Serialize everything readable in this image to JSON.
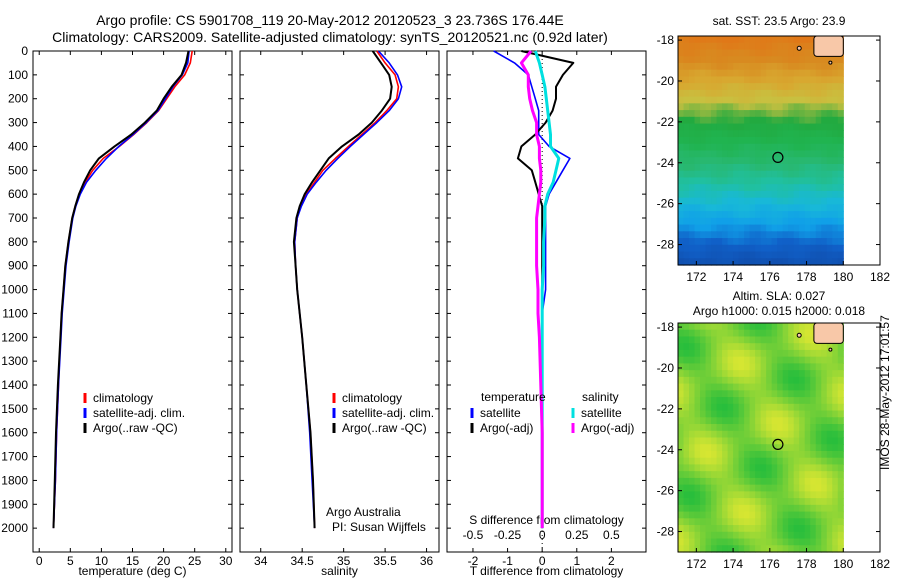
{
  "header": {
    "title_line1": "Argo profile: CS 5901708_119 20-May-2012 20120523_3 23.736S 176.44E",
    "title_line2": "Climatology: CARS2009. Satellite-adjusted climatology: synTS_20120521.nc (0.92d later)"
  },
  "timestamp": "IMOS 28-May-2012 17:01:57",
  "colors": {
    "climatology": "#ff0000",
    "satellite": "#0000ff",
    "argo": "#000000",
    "salinity_satellite": "#00e0e0",
    "salinity_argo": "#ff00ff"
  },
  "depth_ticks": [
    0,
    100,
    200,
    300,
    400,
    500,
    600,
    700,
    800,
    900,
    1000,
    1100,
    1200,
    1300,
    1400,
    1500,
    1600,
    1700,
    1800,
    1900,
    2000
  ],
  "chart_data": [
    {
      "type": "line",
      "panel": "temperature",
      "xlabel": "temperature (deg C)",
      "ylabel": "",
      "xlim": [
        -1,
        31
      ],
      "ylim": [
        2100,
        0
      ],
      "xticks": [
        0,
        5,
        10,
        15,
        20,
        25,
        30
      ],
      "legend": [
        "climatology",
        "satellite-adj. clim.",
        "Argo(..raw -QC)"
      ],
      "depth": [
        0,
        50,
        100,
        150,
        200,
        250,
        300,
        350,
        400,
        450,
        500,
        550,
        600,
        650,
        700,
        800,
        900,
        1000,
        1100,
        1200,
        1400,
        1600,
        1800,
        2000
      ],
      "series": [
        {
          "name": "climatology",
          "color": "red",
          "x": [
            24.6,
            24.3,
            23.4,
            21.8,
            20.5,
            19.2,
            17.3,
            15.2,
            12.9,
            10.3,
            8.6,
            7.4,
            6.5,
            5.8,
            5.3,
            4.7,
            4.2,
            3.9,
            3.6,
            3.4,
            3.1,
            2.8,
            2.6,
            2.3
          ]
        },
        {
          "name": "satellite-adj. clim.",
          "color": "blue",
          "x": [
            24.1,
            23.9,
            23.0,
            21.5,
            20.3,
            19.1,
            17.2,
            15.1,
            12.8,
            10.8,
            9.1,
            7.6,
            6.6,
            5.9,
            5.4,
            4.8,
            4.3,
            4.0,
            3.7,
            3.5,
            3.1,
            2.8,
            2.6,
            2.3
          ]
        },
        {
          "name": "Argo(..raw -QC)",
          "color": "black",
          "x": [
            24.0,
            23.6,
            22.9,
            21.3,
            20.0,
            18.9,
            17.0,
            14.8,
            12.1,
            9.6,
            8.2,
            7.2,
            6.4,
            5.8,
            5.3,
            4.7,
            4.2,
            3.9,
            3.6,
            3.4,
            3.0,
            2.7,
            2.5,
            2.3
          ]
        }
      ]
    },
    {
      "type": "line",
      "panel": "salinity",
      "xlabel": "salinity",
      "ylabel": "",
      "xlim": [
        33.75,
        36.15
      ],
      "ylim": [
        2100,
        0
      ],
      "xticks": [
        34,
        34.5,
        35,
        35.5,
        36
      ],
      "xticklabels": [
        "34",
        "34.5",
        "35",
        "35.5",
        "36"
      ],
      "legend": [
        "climatology",
        "satellite-adj. clim.",
        "Argo(..raw -QC)"
      ],
      "annotation": [
        "Argo Australia",
        "PI: Susan Wijffels"
      ],
      "depth": [
        0,
        50,
        100,
        150,
        200,
        250,
        300,
        350,
        400,
        450,
        500,
        550,
        600,
        650,
        700,
        800,
        900,
        1000,
        1100,
        1200,
        1400,
        1600,
        1800,
        2000
      ],
      "series": [
        {
          "name": "climatology",
          "color": "red",
          "x": [
            35.4,
            35.5,
            35.62,
            35.66,
            35.64,
            35.52,
            35.38,
            35.22,
            35.06,
            34.9,
            34.75,
            34.65,
            34.55,
            34.48,
            34.44,
            34.41,
            34.42,
            34.44,
            34.47,
            34.5,
            34.55,
            34.6,
            34.63,
            34.65
          ]
        },
        {
          "name": "satellite-adj. clim.",
          "color": "blue",
          "x": [
            35.42,
            35.55,
            35.65,
            35.7,
            35.66,
            35.55,
            35.4,
            35.24,
            35.08,
            34.93,
            34.79,
            34.67,
            34.56,
            34.49,
            34.44,
            34.41,
            34.42,
            34.44,
            34.47,
            34.5,
            34.55,
            34.59,
            34.62,
            34.65
          ]
        },
        {
          "name": "Argo(..raw -QC)",
          "color": "black",
          "x": [
            35.35,
            35.45,
            35.55,
            35.58,
            35.56,
            35.46,
            35.34,
            35.18,
            34.98,
            34.82,
            34.72,
            34.62,
            34.53,
            34.47,
            34.43,
            34.4,
            34.42,
            34.44,
            34.47,
            34.5,
            34.55,
            34.6,
            34.63,
            34.65
          ]
        }
      ]
    },
    {
      "type": "line",
      "panel": "difference",
      "xlabel": "T difference from climatology",
      "xlabel_top": "S difference from climatology",
      "ylabel": "",
      "xlim": [
        -2.75,
        3.0
      ],
      "ylim": [
        2100,
        0
      ],
      "xticks": [
        -2,
        -1,
        0,
        1,
        2
      ],
      "top_ticks": [
        -0.5,
        -0.25,
        0,
        0.25,
        0.5
      ],
      "top_tick_labels": [
        "-0.5",
        "-0.25",
        "0",
        "0.25",
        "0.5"
      ],
      "legend_groups": [
        "temperature",
        "salinity"
      ],
      "legend": [
        "satellite",
        "Argo(-adj)",
        "satellite",
        "Argo(-adj)"
      ],
      "depth": [
        0,
        50,
        100,
        150,
        200,
        250,
        300,
        350,
        400,
        450,
        500,
        550,
        600,
        650,
        700,
        800,
        900,
        1000,
        1100,
        1200,
        1400,
        1600,
        1800,
        2000
      ],
      "series": [
        {
          "name": "satellite",
          "quantity": "temperature",
          "color": "blue",
          "x": [
            -1.4,
            -0.8,
            -0.4,
            -0.3,
            -0.2,
            -0.1,
            -0.1,
            -0.1,
            0.2,
            0.8,
            0.6,
            0.4,
            0.2,
            0.1,
            0.1,
            0.1,
            0.1,
            0.1,
            0.0,
            0.0,
            0.0,
            0.0,
            0.0,
            0.0
          ]
        },
        {
          "name": "Argo(-adj)",
          "quantity": "temperature",
          "color": "black",
          "x": [
            -0.6,
            0.9,
            0.6,
            0.4,
            0.4,
            0.3,
            0.1,
            -0.2,
            -0.6,
            -0.7,
            -0.3,
            -0.2,
            -0.1,
            0.0,
            0.0,
            0.0,
            0.0,
            0.0,
            0.0,
            0.0,
            0.0,
            0.0,
            0.0,
            0.0
          ]
        },
        {
          "name": "satellite",
          "quantity": "salinity",
          "color": "cyan",
          "x": [
            -0.05,
            -0.02,
            0.0,
            0.02,
            0.03,
            0.04,
            0.05,
            0.06,
            0.06,
            0.12,
            0.1,
            0.08,
            0.04,
            0.02,
            0.02,
            0.01,
            0.01,
            0.0,
            0.0,
            0.0,
            0.0,
            0.0,
            0.0,
            0.0
          ]
        },
        {
          "name": "Argo(-adj)",
          "quantity": "salinity",
          "color": "magenta",
          "x": [
            -0.08,
            -0.15,
            -0.1,
            -0.1,
            -0.09,
            -0.07,
            -0.04,
            -0.04,
            -0.02,
            -0.02,
            -0.01,
            -0.01,
            -0.02,
            -0.03,
            -0.04,
            -0.04,
            -0.04,
            -0.03,
            -0.03,
            -0.02,
            -0.01,
            0.0,
            0.0,
            0.0
          ]
        }
      ]
    },
    {
      "type": "heatmap",
      "panel": "sst_map",
      "title": "sat. SST: 23.5  Argo: 23.9",
      "xlim": [
        171,
        182
      ],
      "ylim": [
        -29,
        -17.8
      ],
      "xticks": [
        172,
        174,
        176,
        178,
        180,
        182
      ],
      "yticks": [
        -28,
        -26,
        -24,
        -22,
        -20,
        -18
      ],
      "marker": {
        "lon": 176.44,
        "lat": -23.736
      },
      "rows_lat": [
        -17.8,
        -19,
        -20,
        -21,
        -22,
        -23,
        -24,
        -25,
        -26,
        -27,
        -28,
        -29
      ],
      "row_colors": [
        "#e07818",
        "#d88a20",
        "#d8a830",
        "#c8c040",
        "#22aa40",
        "#20b450",
        "#28b870",
        "#20c0a0",
        "#18b8d8",
        "#10a0e8",
        "#1060c8",
        "#1050b0"
      ]
    },
    {
      "type": "heatmap",
      "panel": "sla_map",
      "title_line1": "Altim. SLA: 0.027",
      "title_line2": "Argo h1000: 0.015 h2000: 0.018",
      "xlim": [
        171,
        182
      ],
      "ylim": [
        -29,
        -17.8
      ],
      "xticks": [
        172,
        174,
        176,
        178,
        180,
        182
      ],
      "yticks": [
        -28,
        -26,
        -24,
        -22,
        -20,
        -18
      ],
      "marker": {
        "lon": 176.44,
        "lat": -23.736
      }
    }
  ]
}
